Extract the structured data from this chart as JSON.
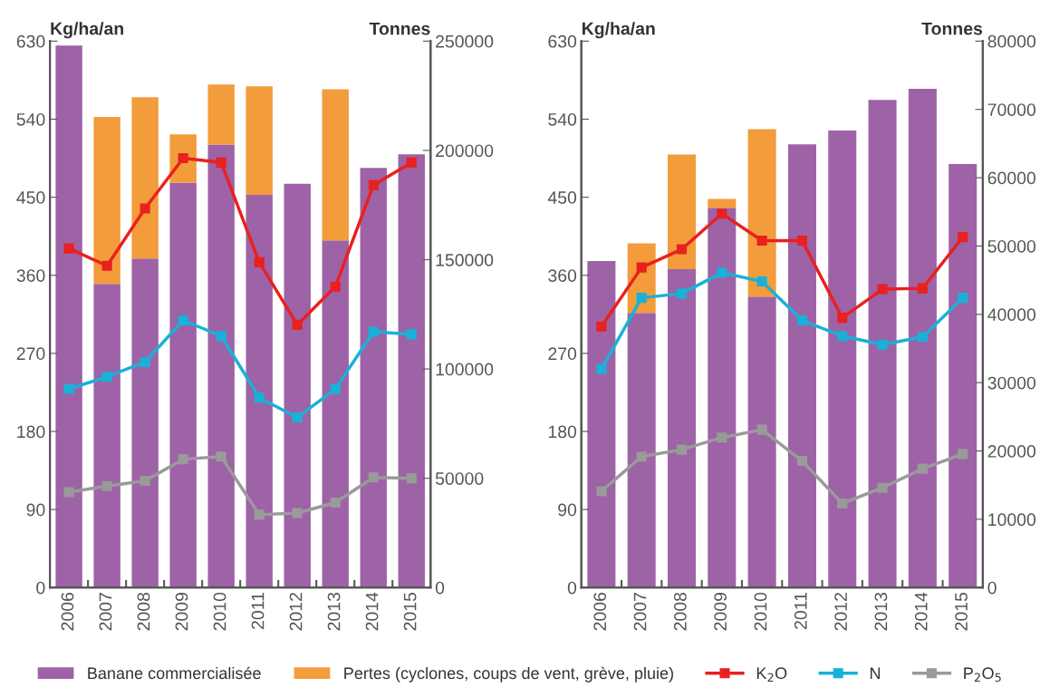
{
  "chart_data": [
    {
      "type": "bar",
      "stacked": true,
      "ylabel": "Kg/ha/an",
      "y2label": "Tonnes",
      "categories": [
        "2006",
        "2007",
        "2008",
        "2009",
        "2010",
        "2011",
        "2012",
        "2013",
        "2014",
        "2015"
      ],
      "ylim": [
        0,
        630
      ],
      "yticks": [
        0,
        90,
        180,
        270,
        360,
        450,
        540,
        630
      ],
      "y2lim": [
        0,
        250000
      ],
      "y2ticks": [
        0,
        50000,
        100000,
        150000,
        200000,
        250000
      ],
      "legend": "bottom",
      "marker": "square",
      "grid": false,
      "series": [
        {
          "name": "Banane commercialisée",
          "axis": "y2",
          "color": "#9e62a6",
          "values": [
            248000,
            138900,
            150500,
            185300,
            202700,
            179700,
            184700,
            158800,
            192000,
            198200
          ]
        },
        {
          "name": "Pertes (cyclones, coups de vent, grève, pluie)",
          "axis": "y2",
          "color": "#f39c3b",
          "values": [
            null,
            76400,
            73800,
            22000,
            27400,
            49600,
            null,
            69200,
            null,
            null
          ]
        },
        {
          "name": "K$_{2}$O",
          "type": "line",
          "axis": "y",
          "color": "#e8211f",
          "values": [
            391,
            371,
            437,
            495,
            490,
            375,
            303,
            347,
            464,
            490
          ]
        },
        {
          "name": "N",
          "type": "line",
          "axis": "y",
          "color": "#19b1d8",
          "values": [
            229,
            243,
            260,
            308,
            290,
            219,
            196,
            229,
            295,
            292
          ]
        },
        {
          "name": "P$_{2}$O$_{5}$",
          "type": "line",
          "axis": "y",
          "color": "#9a9a9a",
          "values": [
            110,
            117,
            123,
            148,
            151,
            84,
            86,
            98,
            127,
            126
          ]
        }
      ]
    },
    {
      "type": "bar",
      "stacked": true,
      "ylabel": "Kg/ha/an",
      "y2label": "Tonnes",
      "categories": [
        "2006",
        "2007",
        "2008",
        "2009",
        "2010",
        "2011",
        "2012",
        "2013",
        "2014",
        "2015"
      ],
      "ylim": [
        0,
        630
      ],
      "yticks": [
        0,
        90,
        180,
        270,
        360,
        450,
        540,
        630
      ],
      "y2lim": [
        0,
        80000
      ],
      "y2ticks": [
        0,
        10000,
        20000,
        30000,
        40000,
        50000,
        60000,
        70000,
        80000
      ],
      "legend": "bottom",
      "marker": "square",
      "grid": false,
      "series": [
        {
          "name": "Banane commercialisée",
          "axis": "y2",
          "color": "#9e62a6",
          "values": [
            47800,
            40200,
            46600,
            55600,
            42600,
            64900,
            66900,
            71400,
            73000,
            62000
          ]
        },
        {
          "name": "Pertes (cyclones, coups de vent, grève, pluie)",
          "axis": "y2",
          "color": "#f39c3b",
          "values": [
            null,
            10200,
            16800,
            1300,
            24500,
            null,
            null,
            null,
            null,
            null
          ]
        },
        {
          "name": "K$_{2}$O",
          "type": "line",
          "axis": "y",
          "color": "#e8211f",
          "values": [
            301,
            369,
            390,
            431,
            400,
            400,
            311,
            344,
            345,
            404
          ]
        },
        {
          "name": "N",
          "type": "line",
          "axis": "y",
          "color": "#19b1d8",
          "values": [
            252,
            334,
            339,
            363,
            353,
            308,
            290,
            280,
            289,
            334
          ]
        },
        {
          "name": "P$_{2}$O$_{5}$",
          "type": "line",
          "axis": "y",
          "color": "#9a9a9a",
          "values": [
            111,
            151,
            159,
            173,
            182,
            146,
            97,
            115,
            137,
            154
          ]
        }
      ]
    }
  ]
}
